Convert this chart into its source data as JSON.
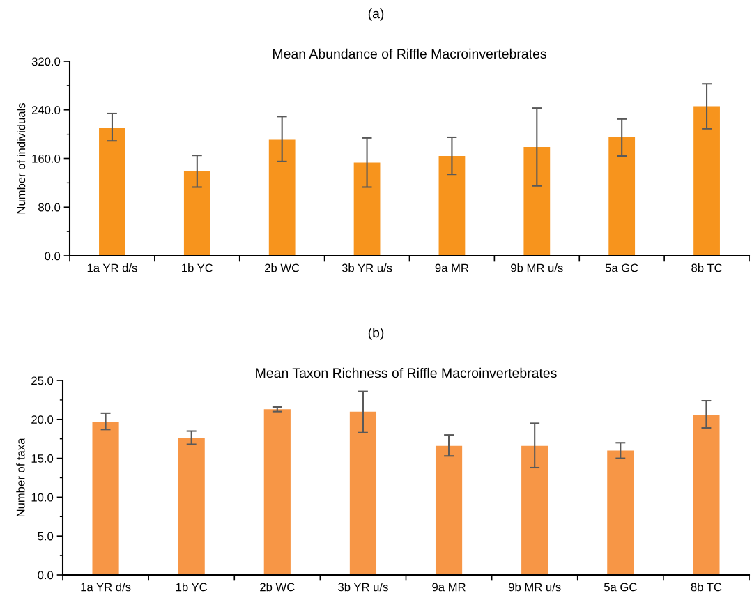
{
  "chart_data": [
    {
      "type": "bar",
      "title": "Mean Abundance of Riffle Macroinvertebrates",
      "ylabel": "Number of individuals",
      "annotations": [
        "(a)"
      ],
      "categories": [
        "1a YR d/s",
        "1b YC",
        "2b WC",
        "3b YR u/s",
        "9a MR",
        "9b MR u/s",
        "5a GC",
        "8b TC"
      ],
      "values": [
        211,
        139,
        191,
        153,
        164,
        179,
        195,
        246
      ],
      "errors": [
        [
          189,
          234
        ],
        [
          113,
          165
        ],
        [
          155,
          229
        ],
        [
          113,
          194
        ],
        [
          134,
          195
        ],
        [
          115,
          243
        ],
        [
          164,
          225
        ],
        [
          209,
          283
        ]
      ],
      "color": "#f7941d",
      "ylim": [
        0,
        320
      ],
      "yticks": [
        {
          "value": 0,
          "label": "0.0"
        },
        {
          "value": 40,
          "label": null
        },
        {
          "value": 80,
          "label": "80.0"
        },
        {
          "value": 120,
          "label": null
        },
        {
          "value": 160,
          "label": "160.0"
        },
        {
          "value": 200,
          "label": null
        },
        {
          "value": 240,
          "label": "240.0"
        },
        {
          "value": 280,
          "label": null
        },
        {
          "value": 320,
          "label": "320.0"
        }
      ],
      "grid": false,
      "legend": false
    },
    {
      "type": "bar",
      "title": "Mean Taxon Richness of Riffle Macroinvertebrates",
      "ylabel": "Number of taxa",
      "annotations": [
        "(b)"
      ],
      "categories": [
        "1a YR d/s",
        "1b YC",
        "2b WC",
        "3b YR u/s",
        "9a MR",
        "9b MR u/s",
        "5a GC",
        "8b TC"
      ],
      "values": [
        19.7,
        17.6,
        21.3,
        21.0,
        16.6,
        16.6,
        16.0,
        20.6
      ],
      "errors": [
        [
          18.7,
          20.8
        ],
        [
          16.8,
          18.5
        ],
        [
          21.0,
          21.6
        ],
        [
          18.3,
          23.6
        ],
        [
          15.3,
          18.0
        ],
        [
          13.8,
          19.5
        ],
        [
          15.0,
          17.0
        ],
        [
          18.9,
          22.4
        ]
      ],
      "color": "#f79646",
      "ylim": [
        0,
        25
      ],
      "yticks": [
        {
          "value": 0,
          "label": "0.0"
        },
        {
          "value": 2.5,
          "label": null
        },
        {
          "value": 5,
          "label": "5.0"
        },
        {
          "value": 7.5,
          "label": null
        },
        {
          "value": 10,
          "label": "10.0"
        },
        {
          "value": 12.5,
          "label": null
        },
        {
          "value": 15,
          "label": "15.0"
        },
        {
          "value": 17.5,
          "label": null
        },
        {
          "value": 20,
          "label": "20.0"
        },
        {
          "value": 22.5,
          "label": null
        },
        {
          "value": 25,
          "label": "25.0"
        }
      ],
      "grid": false,
      "legend": false
    }
  ]
}
